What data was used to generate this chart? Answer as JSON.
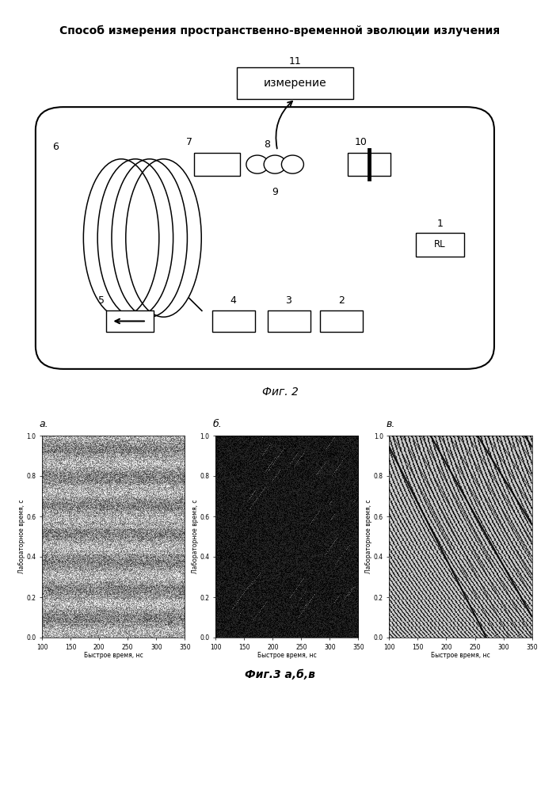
{
  "title": "Способ измерения пространственно-временной эволюции излучения",
  "title_fontsize": 10,
  "fig2_caption": "Фиг. 2",
  "fig3_caption": "Фиг.3 а,б,в",
  "subplot_labels": [
    "а.",
    "б.",
    "в."
  ],
  "xlabel": "Быстрое время, нс",
  "ylabel": "Лабораторное время, с",
  "xlim": [
    100,
    350
  ],
  "ylim": [
    0.0,
    1.0
  ],
  "xticks": [
    100,
    150,
    200,
    250,
    300,
    350
  ],
  "yticks": [
    0.0,
    0.2,
    0.4,
    0.6,
    0.8,
    1.0
  ],
  "background_color": "#ffffff"
}
